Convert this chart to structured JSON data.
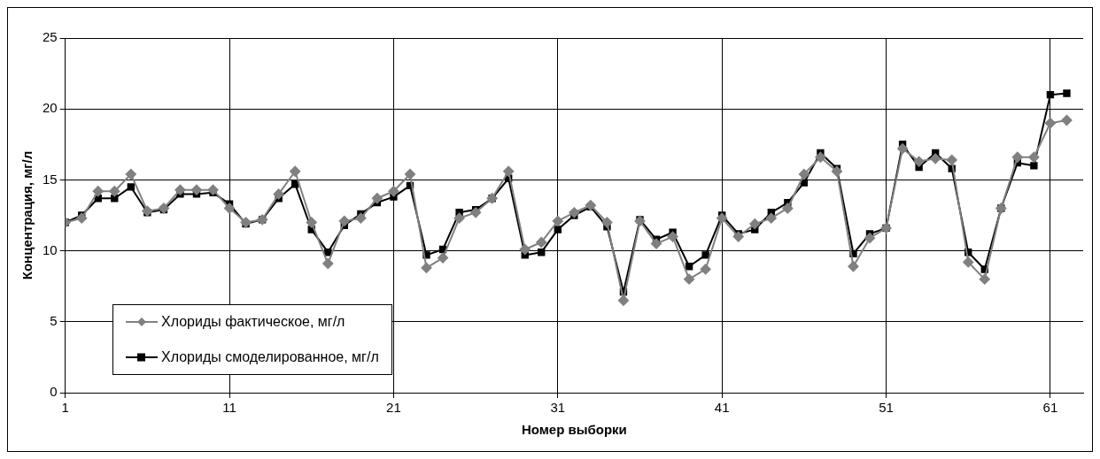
{
  "chart_data": {
    "type": "line",
    "xlabel": "Номер выборки",
    "ylabel": "Концентрация, мг/л",
    "x": [
      1,
      2,
      3,
      4,
      5,
      6,
      7,
      8,
      9,
      10,
      11,
      12,
      13,
      14,
      15,
      16,
      17,
      18,
      19,
      20,
      21,
      22,
      23,
      24,
      25,
      26,
      27,
      28,
      29,
      30,
      31,
      32,
      33,
      34,
      35,
      36,
      37,
      38,
      39,
      40,
      41,
      42,
      43,
      44,
      45,
      46,
      47,
      48,
      49,
      50,
      51,
      52,
      53,
      54,
      55,
      56,
      57,
      58,
      59,
      60,
      61,
      62
    ],
    "series": [
      {
        "name": "Хлориды фактическое, мг/л",
        "color": "#808080",
        "marker": "diamond",
        "values": [
          12.0,
          12.3,
          14.2,
          14.2,
          15.4,
          12.8,
          13.0,
          14.3,
          14.3,
          14.3,
          13.0,
          12.0,
          12.2,
          14.0,
          15.6,
          12.0,
          9.1,
          12.1,
          12.3,
          13.7,
          14.2,
          15.4,
          8.8,
          9.5,
          12.3,
          12.7,
          13.7,
          15.6,
          10.1,
          10.6,
          12.1,
          12.7,
          13.2,
          12.0,
          6.5,
          12.1,
          10.5,
          11.0,
          8.0,
          8.7,
          12.3,
          11.0,
          11.9,
          12.3,
          13.0,
          15.4,
          16.6,
          15.6,
          8.9,
          10.9,
          11.6,
          17.2,
          16.3,
          16.5,
          16.4,
          9.2,
          8.0,
          13.0,
          16.6,
          16.6,
          19.0,
          19.2
        ]
      },
      {
        "name": "Хлориды смоделированное, мг/л",
        "color": "#000000",
        "marker": "square",
        "values": [
          12.0,
          12.5,
          13.7,
          13.7,
          14.5,
          12.7,
          12.9,
          14.0,
          14.0,
          14.1,
          13.3,
          11.9,
          12.2,
          13.7,
          14.7,
          11.5,
          9.9,
          11.8,
          12.6,
          13.4,
          13.8,
          14.6,
          9.7,
          10.1,
          12.7,
          12.9,
          13.7,
          15.1,
          9.7,
          9.9,
          11.5,
          12.5,
          13.1,
          11.7,
          7.1,
          12.2,
          10.8,
          11.3,
          8.9,
          9.7,
          12.5,
          11.2,
          11.5,
          12.7,
          13.4,
          14.8,
          16.9,
          15.8,
          9.8,
          11.2,
          11.6,
          17.5,
          15.9,
          16.9,
          15.8,
          9.9,
          8.7,
          13.0,
          16.2,
          16.0,
          21.0,
          21.1
        ]
      }
    ],
    "xlim": [
      1,
      63
    ],
    "xticks": [
      1,
      11,
      21,
      31,
      41,
      51,
      61
    ],
    "ylim": [
      0,
      25
    ],
    "yticks": [
      0,
      5,
      10,
      15,
      20,
      25
    ],
    "grid": true,
    "legend": "bottom left",
    "line_style": "solid"
  }
}
